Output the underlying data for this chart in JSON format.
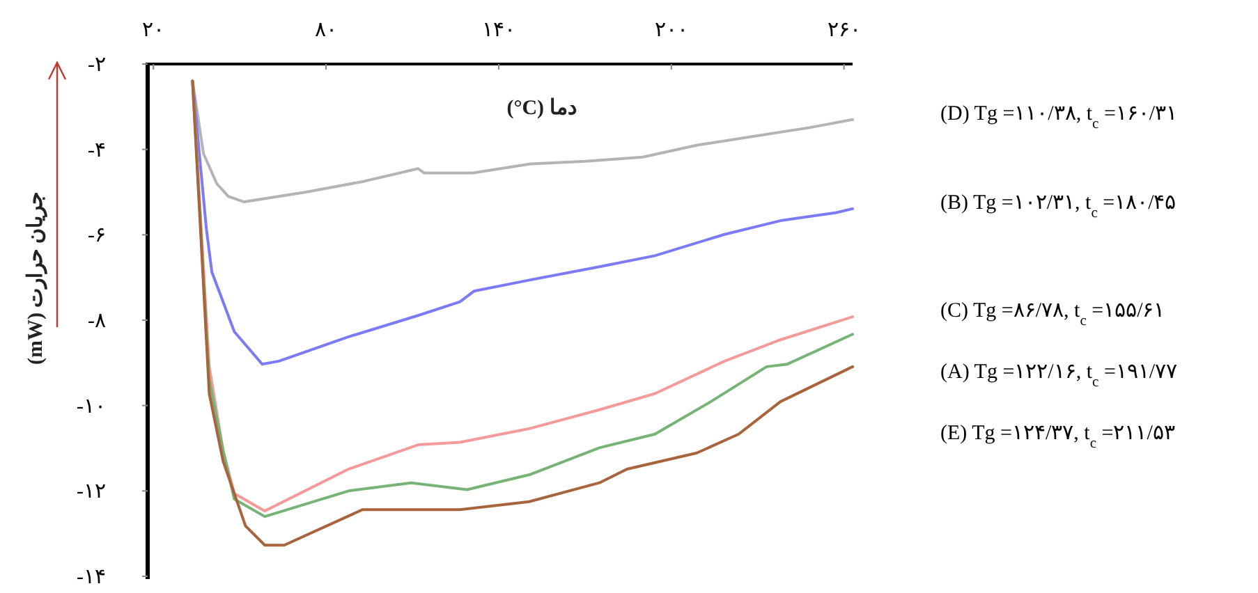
{
  "chart_data": {
    "type": "line",
    "xlabel": "دما (°C)",
    "ylabel": "جریان حرارت (mW)",
    "xlim": [
      18,
      263
    ],
    "ylim": [
      -14,
      -2
    ],
    "xticks": [
      {
        "value": 20,
        "label": "۲۰"
      },
      {
        "value": 80,
        "label": "۸۰"
      },
      {
        "value": 140,
        "label": "۱۴۰"
      },
      {
        "value": 200,
        "label": "۲۰۰"
      },
      {
        "value": 260,
        "label": "۲۶۰"
      }
    ],
    "yticks": [
      {
        "value": -2,
        "label": "-۲"
      },
      {
        "value": -4,
        "label": "-۴"
      },
      {
        "value": -6,
        "label": "-۶"
      },
      {
        "value": -8,
        "label": "-۸"
      },
      {
        "value": -10,
        "label": "-۱۰"
      },
      {
        "value": -12,
        "label": "-۱۲"
      },
      {
        "value": -14,
        "label": "-۱۴"
      }
    ],
    "series": [
      {
        "name": "(D) Tg =۱۱۰/۳۸, t$_{c}$ =۱۶۰/۳۱",
        "color": "#b4b4b4",
        "x": [
          33.6,
          37.4,
          42,
          46,
          51.5,
          73,
          93,
          112,
          114,
          131,
          151,
          170,
          190,
          209,
          228,
          248,
          263
        ],
        "values": [
          -2.4,
          -4.1,
          -4.8,
          -5.1,
          -5.23,
          -5.0,
          -4.75,
          -4.45,
          -4.55,
          -4.55,
          -4.34,
          -4.28,
          -4.18,
          -3.9,
          -3.7,
          -3.49,
          -3.3
        ]
      },
      {
        "name": "(B) Tg =۱۰۲/۳۱, t$_{c}$ =۱۸۰/۴۵",
        "color": "#7b7bf5",
        "x": [
          33.6,
          38.4,
          40.3,
          48.1,
          57.8,
          63.6,
          87.8,
          112,
          126.5,
          131.4,
          150.7,
          175,
          194.3,
          218.5,
          237.9,
          257.3,
          263
        ],
        "values": [
          -2.4,
          -5.86,
          -6.87,
          -8.27,
          -9.03,
          -8.96,
          -8.39,
          -7.89,
          -7.57,
          -7.32,
          -7.06,
          -6.75,
          -6.49,
          -5.99,
          -5.67,
          -5.48,
          -5.39
        ]
      },
      {
        "name": "(C) Tg =۸۶/۷۸, t$_{c}$ =۱۵۵/۶۱",
        "color": "#f59a9a",
        "x": [
          33.6,
          39.4,
          44.2,
          48.1,
          58.7,
          87.8,
          112,
          126.5,
          150.7,
          175,
          194.3,
          218.5,
          237.9,
          263
        ],
        "values": [
          -2.4,
          -9.09,
          -11.05,
          -12.06,
          -12.47,
          -11.49,
          -10.92,
          -10.86,
          -10.54,
          -10.1,
          -9.72,
          -8.96,
          -8.46,
          -7.92
        ]
      },
      {
        "name": "(A) Tg =۱۲۲/۱۶, t$_{c}$ =۱۹۱/۷۷",
        "color": "#77b377",
        "x": [
          33.6,
          39.4,
          44.2,
          48.1,
          58.7,
          87.8,
          109.6,
          129,
          150.7,
          175,
          194.3,
          213.7,
          233.1,
          240.3,
          263
        ],
        "values": [
          -2.4,
          -9.4,
          -11.05,
          -12.19,
          -12.6,
          -12.0,
          -11.81,
          -11.97,
          -11.62,
          -10.99,
          -10.67,
          -9.91,
          -9.09,
          -9.03,
          -8.33
        ]
      },
      {
        "name": "(E) Tg =۱۲۴/۳۷, t$_{c}$ =۲۱۱/۵۳",
        "color": "#a8643c",
        "x": [
          33.6,
          39.4,
          44.2,
          52,
          58.7,
          65.5,
          92.6,
          126.5,
          150.7,
          175,
          184.6,
          208.9,
          223.4,
          237.9,
          263
        ],
        "values": [
          -2.4,
          -9.72,
          -11.3,
          -12.82,
          -13.27,
          -13.27,
          -12.44,
          -12.44,
          -12.25,
          -11.81,
          -11.49,
          -11.11,
          -10.67,
          -9.91,
          -9.09
        ]
      }
    ]
  }
}
